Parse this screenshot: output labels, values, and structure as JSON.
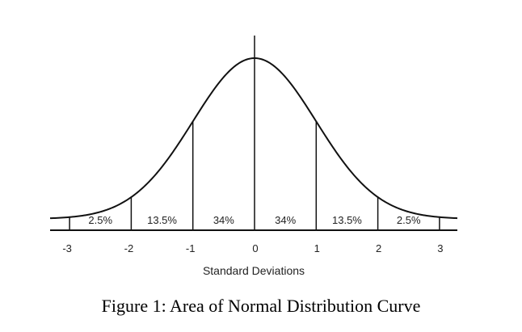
{
  "diagram": {
    "regions": [
      {
        "label": "2.5%",
        "from": -3,
        "to": -2
      },
      {
        "label": "13.5%",
        "from": -2,
        "to": -1
      },
      {
        "label": "34%",
        "from": -1,
        "to": 0
      },
      {
        "label": "34%",
        "from": 0,
        "to": 1
      },
      {
        "label": "13.5%",
        "from": 1,
        "to": 2
      },
      {
        "label": "2.5%",
        "from": 2,
        "to": 3
      }
    ],
    "ticks": [
      "-3",
      "-2",
      "-1",
      "0",
      "1",
      "2",
      "3"
    ],
    "axis_label": "Standard Deviations",
    "x_range": [
      -3,
      3
    ],
    "colors": {
      "line": "#111111",
      "text": "#222222"
    }
  },
  "caption": "Figure 1: Area of Normal Distribution Curve"
}
